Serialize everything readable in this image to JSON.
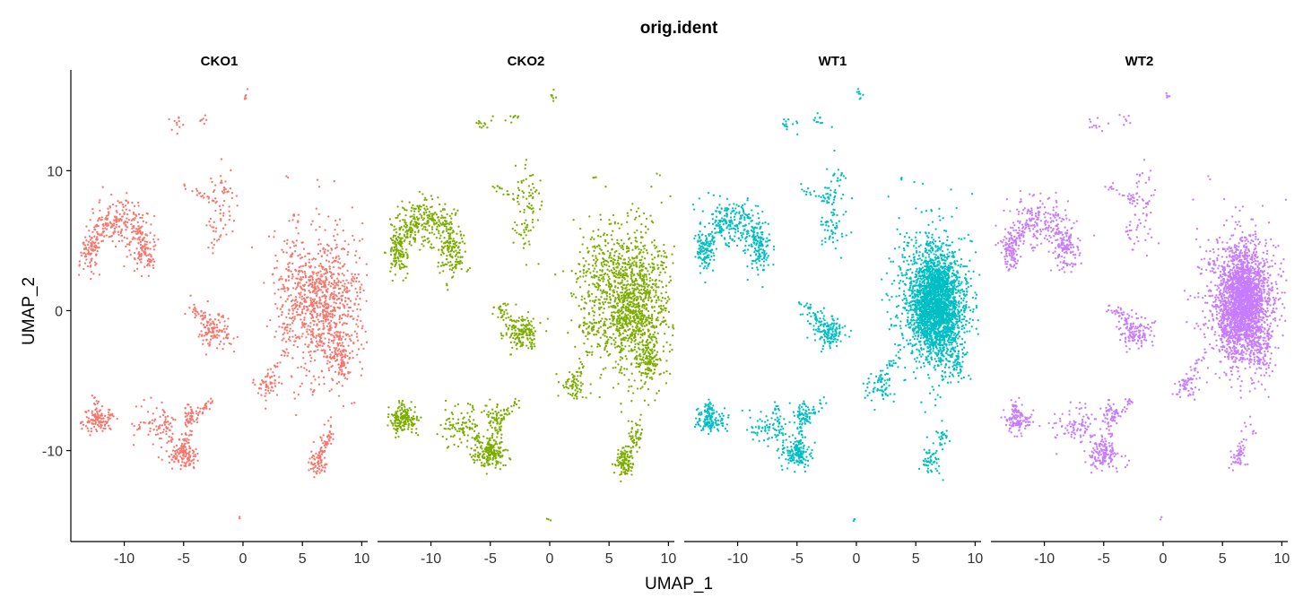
{
  "chart_data": {
    "type": "scatter",
    "title": "orig.ident",
    "xlabel": "UMAP_1",
    "ylabel": "UMAP_2",
    "xlim": [
      -14.5,
      10.5
    ],
    "ylim": [
      -16.5,
      17.2
    ],
    "x_ticks": [
      -10,
      -5,
      0,
      5,
      10
    ],
    "y_ticks": [
      -10,
      0,
      10
    ],
    "x_tick_labels": [
      "-10",
      "-5",
      "0",
      "5",
      "10"
    ],
    "y_tick_labels": [
      "-10",
      "0",
      "10"
    ],
    "grid": false,
    "legend": "none",
    "facets": [
      {
        "name": "CKO1",
        "color": "#F8766D",
        "seed": 11,
        "weights": {
          "big": 0.7,
          "bigdense": 0.3,
          "left": 1.0,
          "cluster9": 0.9,
          "bottomright": 1.0,
          "far": 0.6
        }
      },
      {
        "name": "CKO2",
        "color": "#7CAE00",
        "seed": 23,
        "weights": {
          "big": 1.0,
          "bigdense": 0.4,
          "left": 1.4,
          "cluster9": 1.2,
          "bottomright": 1.5,
          "far": 0.7
        }
      },
      {
        "name": "WT1",
        "color": "#00BFC4",
        "seed": 37,
        "weights": {
          "big": 0.3,
          "bigdense": 3.2,
          "left": 1.2,
          "cluster9": 0.7,
          "bottomright": 0.6,
          "far": 0.8
        }
      },
      {
        "name": "WT2",
        "color": "#C77CFF",
        "seed": 51,
        "weights": {
          "big": 0.3,
          "bigdense": 3.0,
          "left": 1.1,
          "cluster9": 0.5,
          "bottomright": 0.4,
          "far": 0.6
        }
      }
    ],
    "clusters": [
      {
        "cx": 7.0,
        "cy": 0.5,
        "sx": 1.8,
        "sy": 2.8,
        "n": 900,
        "group": "big"
      },
      {
        "cx": 6.7,
        "cy": 0.5,
        "sx": 1.1,
        "sy": 2.0,
        "n": 700,
        "group": "bigdense"
      },
      {
        "cx": 4.0,
        "cy": 2.5,
        "sx": 1.0,
        "sy": 1.8,
        "n": 160,
        "group": "big"
      },
      {
        "cx": 8.3,
        "cy": -3.8,
        "sx": 0.45,
        "sy": 0.7,
        "n": 70,
        "group": "cluster9"
      },
      {
        "cx": 3.5,
        "cy": -1.2,
        "sx": 0.7,
        "sy": 0.5,
        "n": 40,
        "group": "big"
      },
      {
        "cx": 2.0,
        "cy": -5.5,
        "sx": 0.6,
        "sy": 0.5,
        "n": 70,
        "group": "far"
      },
      {
        "cx": -10.5,
        "cy": 6.3,
        "sx": 1.2,
        "sy": 0.9,
        "n": 170,
        "group": "left"
      },
      {
        "cx": -8.2,
        "cy": 4.3,
        "sx": 0.55,
        "sy": 0.9,
        "n": 100,
        "group": "left"
      },
      {
        "cx": -12.8,
        "cy": 4.3,
        "sx": 0.45,
        "sy": 0.8,
        "n": 90,
        "group": "left"
      },
      {
        "cx": -1.8,
        "cy": 7.5,
        "sx": 0.55,
        "sy": 1.5,
        "n": 90,
        "group": "far"
      },
      {
        "cx": -2.5,
        "cy": 5.5,
        "sx": 0.4,
        "sy": 0.6,
        "n": 25,
        "group": "far"
      },
      {
        "cx": -2.3,
        "cy": -1.5,
        "sx": 0.75,
        "sy": 0.6,
        "n": 110,
        "group": "left"
      },
      {
        "cx": -4.0,
        "cy": 0.0,
        "sx": 0.5,
        "sy": 0.4,
        "n": 25,
        "group": "far"
      },
      {
        "cx": -12.3,
        "cy": -7.8,
        "sx": 0.6,
        "sy": 0.45,
        "n": 110,
        "group": "left"
      },
      {
        "cx": -5.0,
        "cy": -10.3,
        "sx": 0.65,
        "sy": 0.5,
        "n": 120,
        "group": "left"
      },
      {
        "cx": -7.5,
        "cy": -8.3,
        "sx": 0.9,
        "sy": 0.7,
        "n": 60,
        "group": "left"
      },
      {
        "cx": -4.5,
        "cy": -7.5,
        "sx": 0.4,
        "sy": 0.5,
        "n": 40,
        "group": "left"
      },
      {
        "cx": 6.3,
        "cy": -10.8,
        "sx": 0.4,
        "sy": 0.5,
        "n": 70,
        "group": "bottomright"
      },
      {
        "cx": 7.2,
        "cy": -9.0,
        "sx": 0.35,
        "sy": 0.6,
        "n": 25,
        "group": "bottomright"
      },
      {
        "cx": -5.6,
        "cy": 13.3,
        "sx": 0.35,
        "sy": 0.3,
        "n": 18,
        "group": "far"
      },
      {
        "cx": -3.2,
        "cy": 13.7,
        "sx": 0.25,
        "sy": 0.2,
        "n": 12,
        "group": "far"
      },
      {
        "cx": 0.3,
        "cy": 15.4,
        "sx": 0.15,
        "sy": 0.2,
        "n": 10,
        "group": "far"
      },
      {
        "cx": 3.8,
        "cy": 9.5,
        "sx": 0.1,
        "sy": 0.1,
        "n": 4,
        "group": "far"
      },
      {
        "cx": -0.2,
        "cy": -14.9,
        "sx": 0.12,
        "sy": 0.1,
        "n": 4,
        "group": "far"
      }
    ],
    "bridges": [
      {
        "x1": -2.5,
        "y1": -6.3,
        "x2": -4.5,
        "y2": -8.0,
        "n": 30
      },
      {
        "x1": -4.5,
        "y1": -8.5,
        "x2": -5.2,
        "y2": -10.2,
        "n": 25
      },
      {
        "x1": -6.8,
        "y1": -6.5,
        "x2": -6.0,
        "y2": -9.5,
        "n": 25
      },
      {
        "x1": -12.5,
        "y1": -6.3,
        "x2": -12.3,
        "y2": -7.5,
        "n": 15
      },
      {
        "x1": 1.5,
        "y1": -5.5,
        "x2": 4.0,
        "y2": -2.5,
        "n": 30
      },
      {
        "x1": -4.2,
        "y1": 0.2,
        "x2": -2.5,
        "y2": -1.2,
        "n": 20
      },
      {
        "x1": -5.0,
        "y1": 9.0,
        "x2": -2.5,
        "y2": 7.8,
        "n": 20
      },
      {
        "x1": -12.8,
        "y1": 4.5,
        "x2": -11.2,
        "y2": 6.4,
        "n": 25
      },
      {
        "x1": -9.0,
        "y1": 6.5,
        "x2": -8.3,
        "y2": 4.5,
        "n": 20
      },
      {
        "x1": 6.0,
        "y1": -11.0,
        "x2": 7.4,
        "y2": -8.7,
        "n": 20
      },
      {
        "x1": 8.0,
        "y1": -1.5,
        "x2": 8.4,
        "y2": -3.8,
        "n": 25
      }
    ]
  }
}
